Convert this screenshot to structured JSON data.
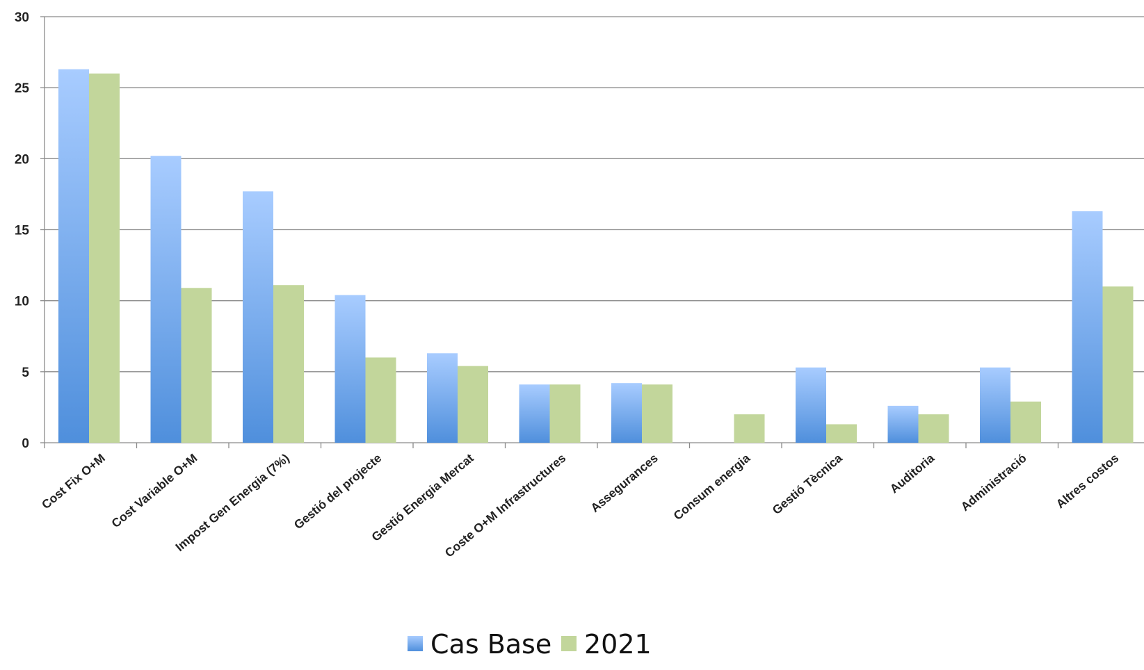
{
  "chart_data": {
    "type": "bar",
    "categories": [
      "Cost Fix O+M",
      "Cost Variable O+M",
      "Impost Gen Energia (7%)",
      "Gestió del projecte",
      "Gestió Energia Mercat",
      "Coste O+M Infrastructures",
      "Assegurances",
      "Consum energia",
      "Gestió Tècnica",
      "Auditoria",
      "Administració",
      "Altres costos"
    ],
    "series": [
      {
        "name": "Cas Base",
        "values": [
          26.3,
          20.2,
          17.7,
          10.4,
          6.3,
          4.1,
          4.2,
          0,
          5.3,
          2.6,
          5.3,
          16.3
        ],
        "color": "#4f8fdc",
        "color_light": "#a8ccff"
      },
      {
        "name": "2021",
        "values": [
          26.0,
          10.9,
          11.1,
          6.0,
          5.4,
          4.1,
          4.1,
          2.0,
          1.3,
          2.0,
          2.9,
          11.0
        ],
        "color": "#c2d69b"
      }
    ],
    "ylim": [
      0,
      30
    ],
    "yticks": [
      0,
      5,
      10,
      15,
      20,
      25,
      30
    ],
    "grid": true,
    "legend_position": "bottom-center",
    "title": "",
    "xlabel": "",
    "ylabel": ""
  }
}
